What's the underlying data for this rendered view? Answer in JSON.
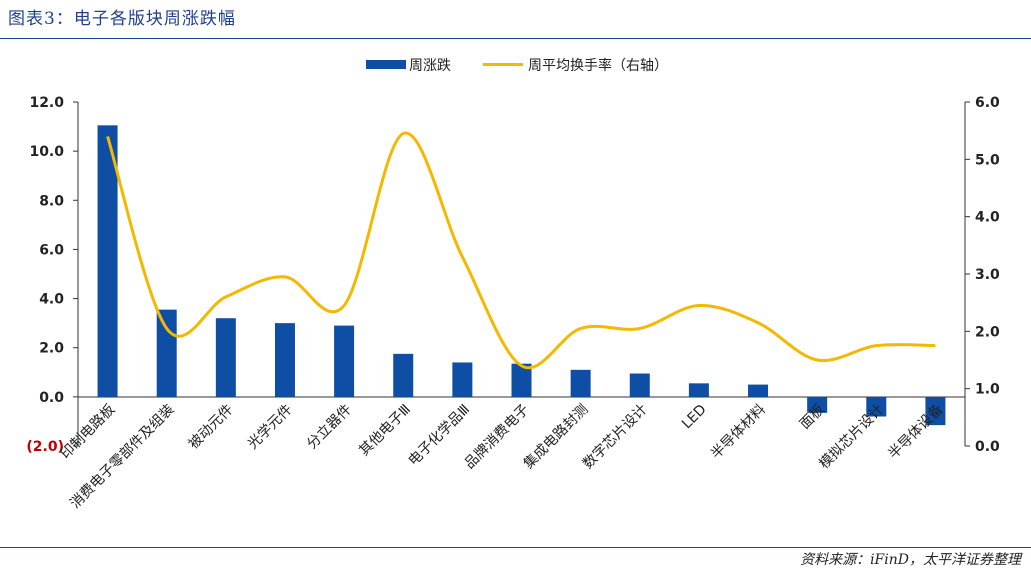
{
  "figure_title": "图表3：电子各版块周涨跌幅",
  "source_note": "资料来源：iFinD，太平洋证券整理",
  "chart_data": {
    "type": "bar",
    "categories": [
      "印制电路板",
      "消费电子零部件及组装",
      "被动元件",
      "光学元件",
      "分立器件",
      "其他电子Ⅲ",
      "电子化学品Ⅲ",
      "品牌消费电子",
      "集成电路封测",
      "数字芯片设计",
      "LED",
      "半导体材料",
      "面板",
      "模拟芯片设计",
      "半导体设备"
    ],
    "series": [
      {
        "name": "周涨跌",
        "axis": "left",
        "kind": "bar",
        "color": "#0e4ea5",
        "values": [
          11.05,
          3.55,
          3.2,
          3.0,
          2.9,
          1.75,
          1.4,
          1.35,
          1.1,
          0.95,
          0.55,
          0.5,
          -0.65,
          -0.8,
          -1.15
        ]
      },
      {
        "name": "周平均换手率（右轴）",
        "axis": "right",
        "kind": "line",
        "color": "#f5b800",
        "values": [
          5.4,
          2.05,
          2.6,
          2.95,
          2.45,
          5.45,
          3.3,
          1.4,
          2.05,
          2.05,
          2.45,
          2.15,
          1.5,
          1.75,
          1.75
        ]
      }
    ],
    "y_left": {
      "min": -2.0,
      "max": 12.0,
      "ticks": [
        "12.0",
        "10.0",
        "8.0",
        "6.0",
        "4.0",
        "2.0",
        "0.0",
        "(2.0)"
      ],
      "tick_values": [
        12,
        10,
        8,
        6,
        4,
        2,
        0,
        -2
      ]
    },
    "y_right": {
      "min": 0.0,
      "max": 6.0,
      "ticks": [
        "6.0",
        "5.0",
        "4.0",
        "3.0",
        "2.0",
        "1.0",
        "0.0"
      ],
      "tick_values": [
        6,
        5,
        4,
        3,
        2,
        1,
        0
      ]
    },
    "negative_tick_color": "#c00000",
    "legend_position": "top-center",
    "grid": false
  }
}
